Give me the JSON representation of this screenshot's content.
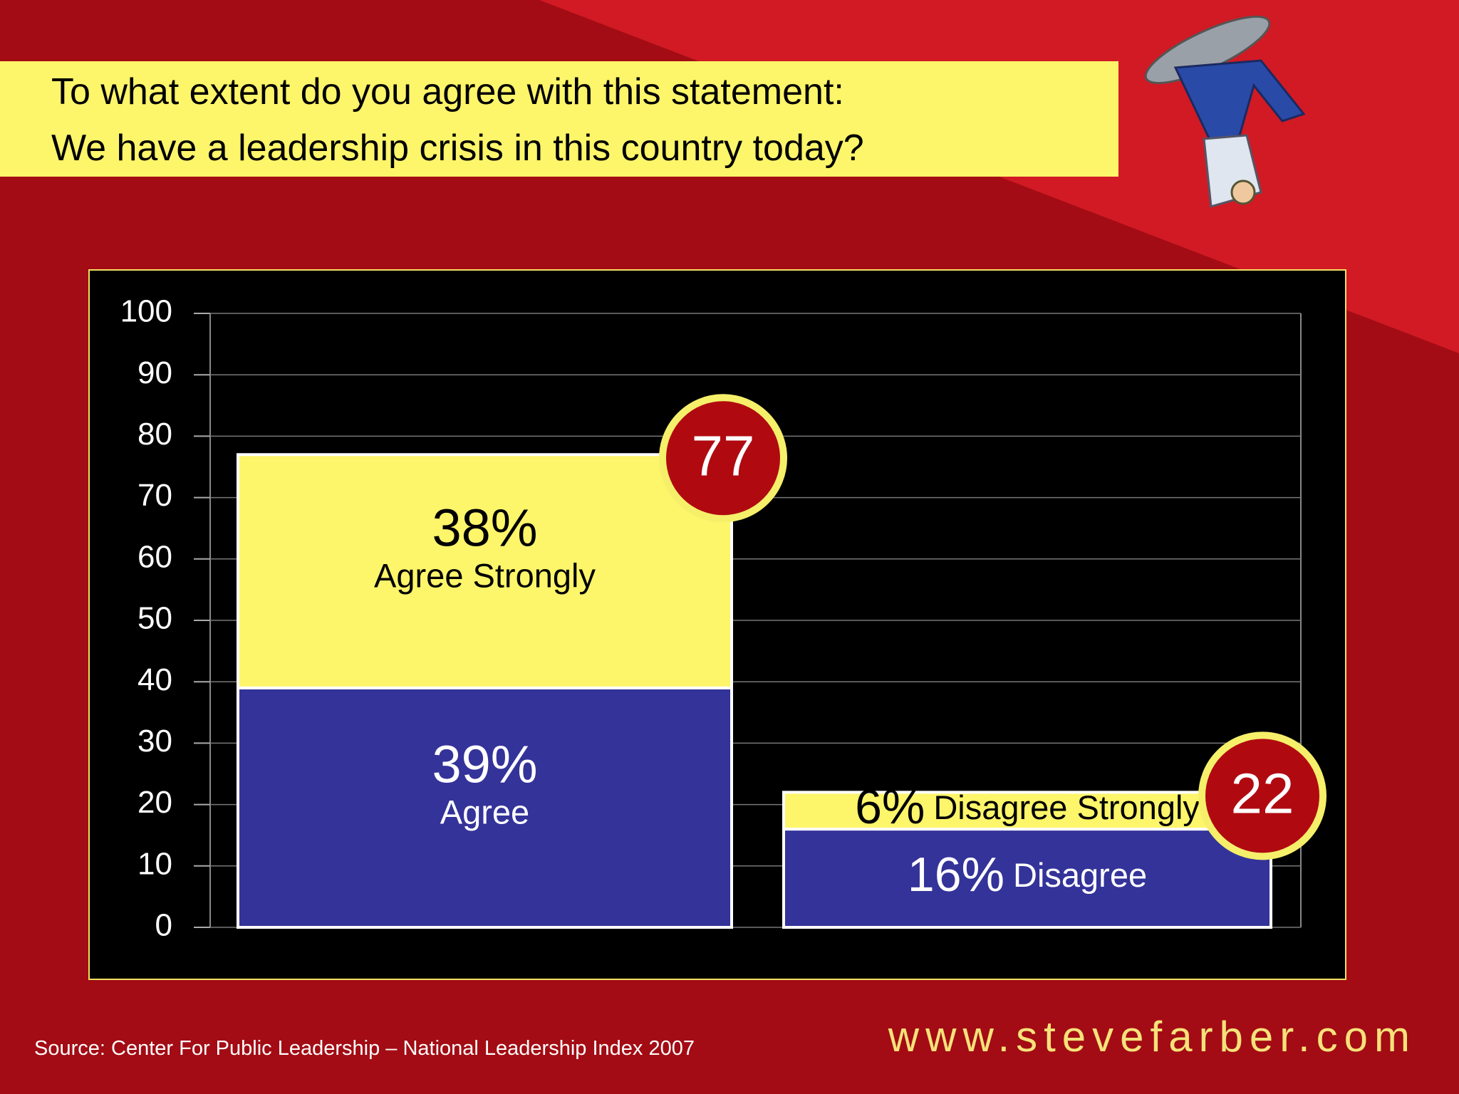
{
  "title_lines": [
    "To what extent do you agree with this statement:",
    "We have a leadership crisis in this country today?"
  ],
  "chart_data": {
    "type": "stacked_bar",
    "categories": [
      null,
      null
    ],
    "series": [
      {
        "color": "#343399",
        "values": [
          39,
          16
        ],
        "value_labels": [
          "39%",
          "16%"
        ],
        "labels": [
          "Agree",
          "Disagree"
        ],
        "text_color": "#ffffff"
      },
      {
        "color": "#fdf56a",
        "values": [
          38,
          6
        ],
        "value_labels": [
          "38%",
          "6%"
        ],
        "labels": [
          "Agree Strongly",
          "Disagree Strongly"
        ],
        "text_color": "#000000"
      }
    ],
    "totals": [
      77,
      22
    ],
    "ylim": [
      0,
      100
    ],
    "yticks": [
      0,
      10,
      20,
      30,
      40,
      50,
      60,
      70,
      80,
      90,
      100
    ],
    "grid": true
  },
  "footer": {
    "source": "Source: Center For Public Leadership – National Leadership Index 2007",
    "website": "www.stevefarber.com"
  }
}
